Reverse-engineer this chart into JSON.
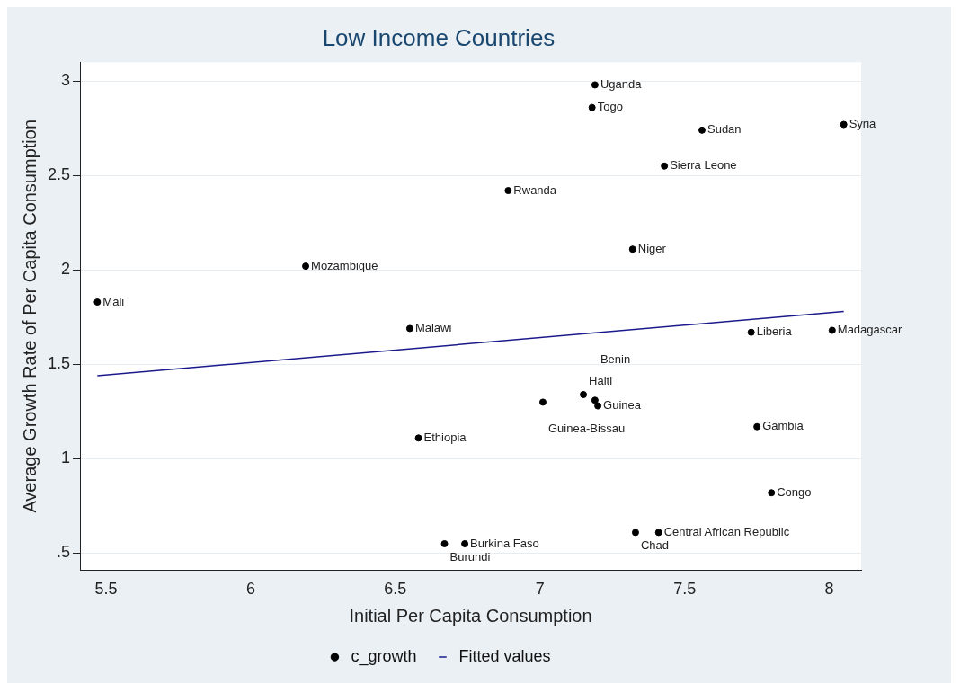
{
  "chart_data": {
    "type": "scatter",
    "title": "Low Income Countries",
    "xlabel": "Initial Per Capita Consumption",
    "ylabel": "Average Growth Rate of Per Capita Consumption",
    "series": [
      {
        "name": "c_growth",
        "marker": "circle",
        "color": "#000000",
        "x": [
          7.19,
          7.18,
          7.56,
          8.05,
          7.43,
          6.89,
          7.32,
          6.19,
          5.47,
          6.55,
          7.73,
          8.01,
          7.15,
          7.01,
          7.19,
          7.2,
          6.58,
          7.75,
          7.8,
          6.67,
          6.74,
          7.33,
          7.41
        ],
        "values": [
          2.98,
          2.86,
          2.74,
          2.77,
          2.55,
          2.42,
          2.11,
          2.02,
          1.83,
          1.69,
          1.67,
          1.68,
          1.34,
          1.3,
          1.31,
          1.28,
          1.11,
          1.17,
          0.82,
          0.55,
          0.55,
          0.61,
          0.61
        ]
      },
      {
        "name": "Fitted values",
        "type": "line",
        "marker": "none",
        "color": "#1a1a8c",
        "x": [
          5.47,
          8.05
        ],
        "values": [
          1.44,
          1.78
        ]
      }
    ],
    "annotations": [
      {
        "text": "Uganda",
        "x": 7.19,
        "y": 2.98
      },
      {
        "text": "Togo",
        "x": 7.18,
        "y": 2.86
      },
      {
        "text": "Sudan",
        "x": 7.56,
        "y": 2.74
      },
      {
        "text": "Syria",
        "x": 8.05,
        "y": 2.77
      },
      {
        "text": "Sierra Leone",
        "x": 7.43,
        "y": 2.55
      },
      {
        "text": "Rwanda",
        "x": 6.89,
        "y": 2.42
      },
      {
        "text": "Niger",
        "x": 7.32,
        "y": 2.11
      },
      {
        "text": "Mozambique",
        "x": 6.19,
        "y": 2.02
      },
      {
        "text": "Mali",
        "x": 5.47,
        "y": 1.83
      },
      {
        "text": "Malawi",
        "x": 6.55,
        "y": 1.69
      },
      {
        "text": "Liberia",
        "x": 7.73,
        "y": 1.67
      },
      {
        "text": "Madagascar",
        "x": 8.01,
        "y": 1.68
      },
      {
        "text": "Haiti",
        "x": 7.15,
        "y": 1.34
      },
      {
        "text": "Guinea-Bissau",
        "x": 7.01,
        "y": 1.3
      },
      {
        "text": "Benin",
        "x": 7.19,
        "y": 1.31
      },
      {
        "text": "Guinea",
        "x": 7.2,
        "y": 1.28
      },
      {
        "text": "Ethiopia",
        "x": 6.58,
        "y": 1.11
      },
      {
        "text": "Gambia",
        "x": 7.75,
        "y": 1.17
      },
      {
        "text": "Congo",
        "x": 7.8,
        "y": 0.82
      },
      {
        "text": "Burundi",
        "x": 6.67,
        "y": 0.55
      },
      {
        "text": "Burkina Faso",
        "x": 6.74,
        "y": 0.55
      },
      {
        "text": "Chad",
        "x": 7.33,
        "y": 0.61
      },
      {
        "text": "Central African Republic",
        "x": 7.41,
        "y": 0.61
      }
    ],
    "xlim": [
      5.41,
      8.11
    ],
    "xticks": [
      5.5,
      6,
      6.5,
      7,
      7.5,
      8
    ],
    "ylim": [
      0.41,
      3.1
    ],
    "yticks": [
      {
        "value": 0.5,
        "label": ".5"
      },
      1,
      1.5,
      2,
      2.5,
      3
    ],
    "grid": "y",
    "legend": "bottom",
    "line_style": "solid"
  }
}
